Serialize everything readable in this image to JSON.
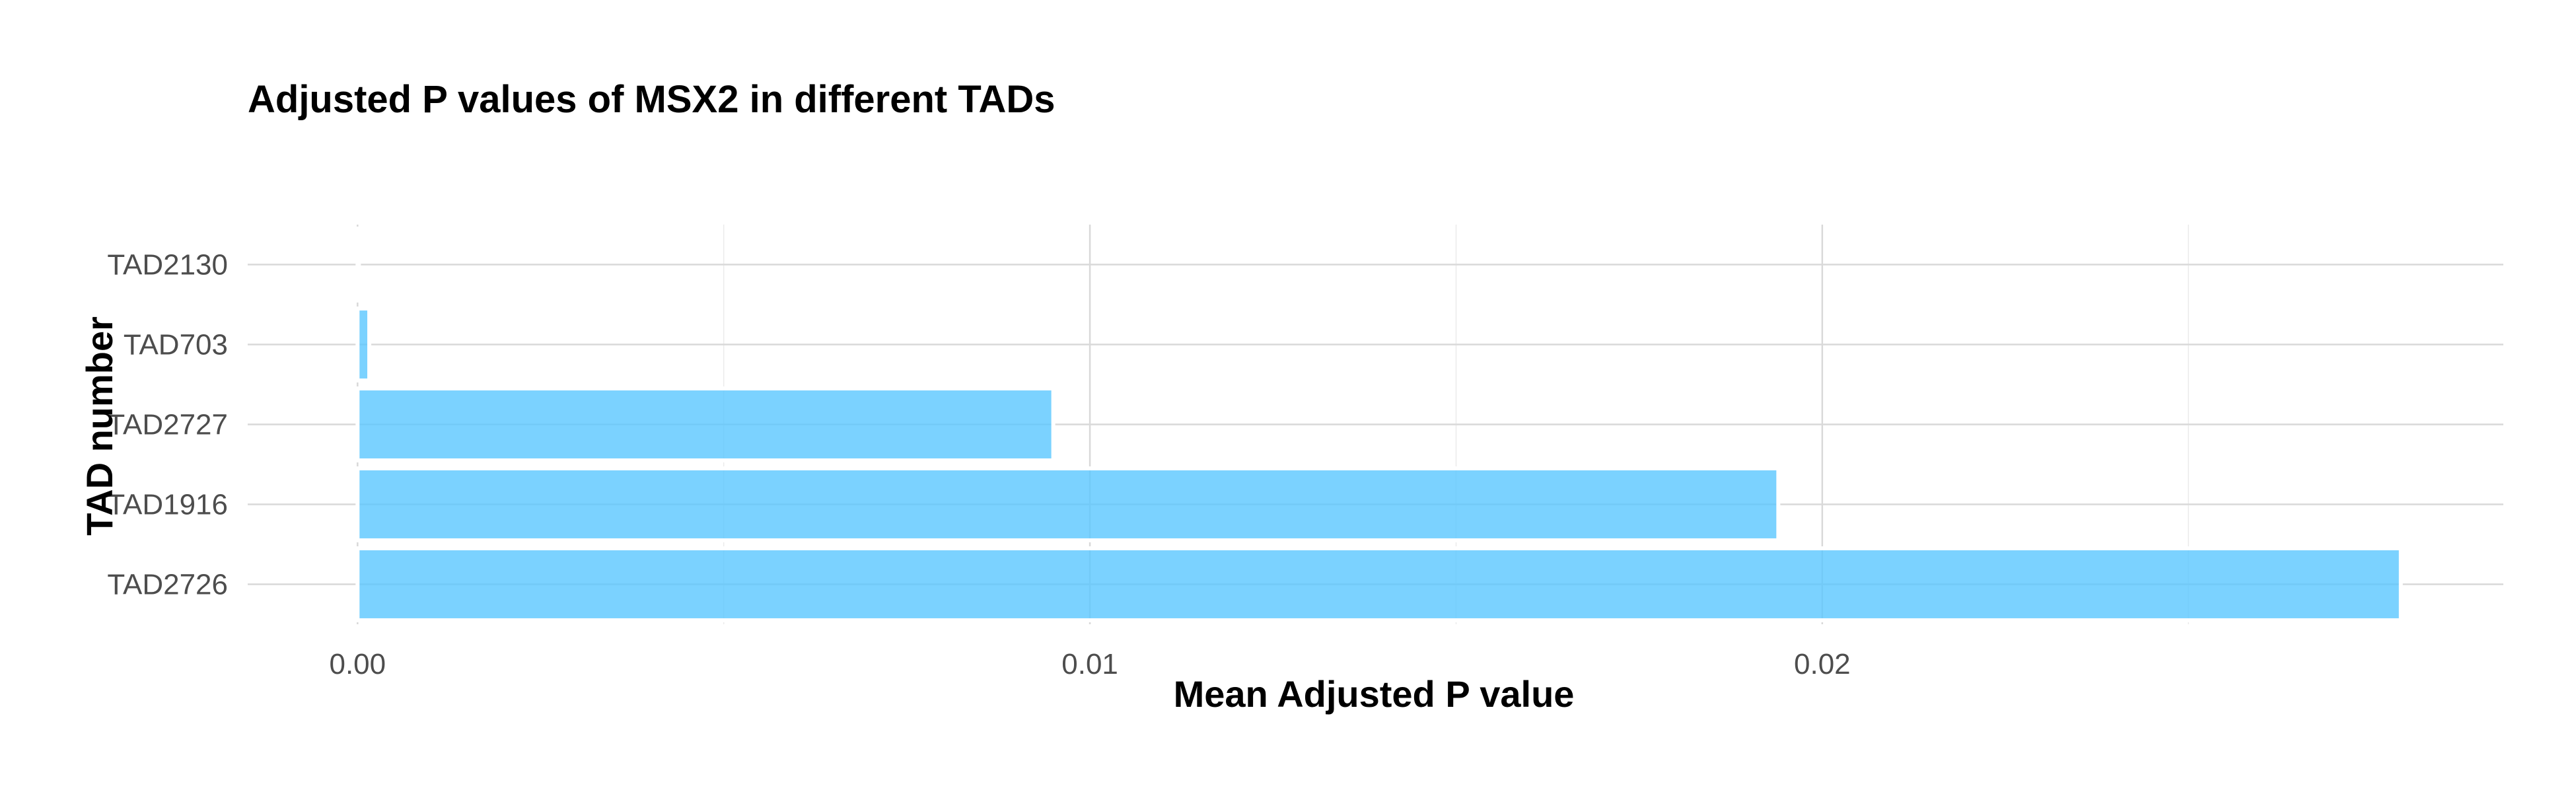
{
  "chart_data": {
    "type": "bar",
    "orientation": "horizontal",
    "title": "Adjusted P values of MSX2 in different TADs",
    "xlabel": "Mean Adjusted P value",
    "ylabel": "TAD number",
    "categories": [
      "TAD2130",
      "TAD703",
      "TAD2727",
      "TAD1916",
      "TAD2726"
    ],
    "values": [
      1e-05,
      0.00016,
      0.0095,
      0.0194,
      0.0279
    ],
    "xlim": [
      -0.0015,
      0.0293
    ],
    "x_ticks": [
      0.0,
      0.01,
      0.02
    ],
    "x_tick_labels": [
      "0.00",
      "0.01",
      "0.02"
    ],
    "x_minor_ticks": [
      0.005,
      0.015,
      0.025
    ],
    "bar_color": "#56c5ff",
    "grid": true,
    "legend": "none"
  }
}
